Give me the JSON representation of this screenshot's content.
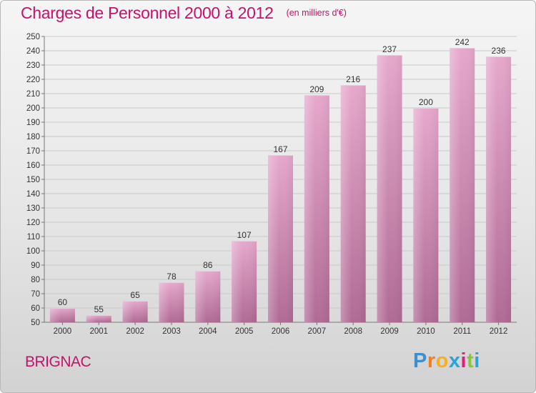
{
  "header": {
    "title": "Charges de Personnel 2000 à 2012",
    "subtitle": "(en milliers d'€)"
  },
  "footer": {
    "commune": "BRIGNAC",
    "brand": "Proxiti"
  },
  "colors": {
    "accent": "#c4136b",
    "bar_top": "#e6a8cc",
    "bar_bottom": "#b06b95"
  },
  "chart_data": {
    "type": "bar",
    "categories": [
      "2000",
      "2001",
      "2002",
      "2003",
      "2004",
      "2005",
      "2006",
      "2007",
      "2008",
      "2009",
      "2010",
      "2011",
      "2012"
    ],
    "values": [
      60,
      55,
      65,
      78,
      86,
      107,
      167,
      209,
      216,
      237,
      200,
      242,
      236
    ],
    "data_labels": [
      "60",
      "55",
      "65",
      "78",
      "86",
      "107",
      "167",
      "209",
      "216",
      "237",
      "200",
      "242",
      "236"
    ],
    "title": "Charges de Personnel 2000 à 2012",
    "unit": "(en milliers d'€)",
    "ylim": [
      50,
      250
    ],
    "ytick_step": 10,
    "grid": true,
    "legend": "none"
  }
}
